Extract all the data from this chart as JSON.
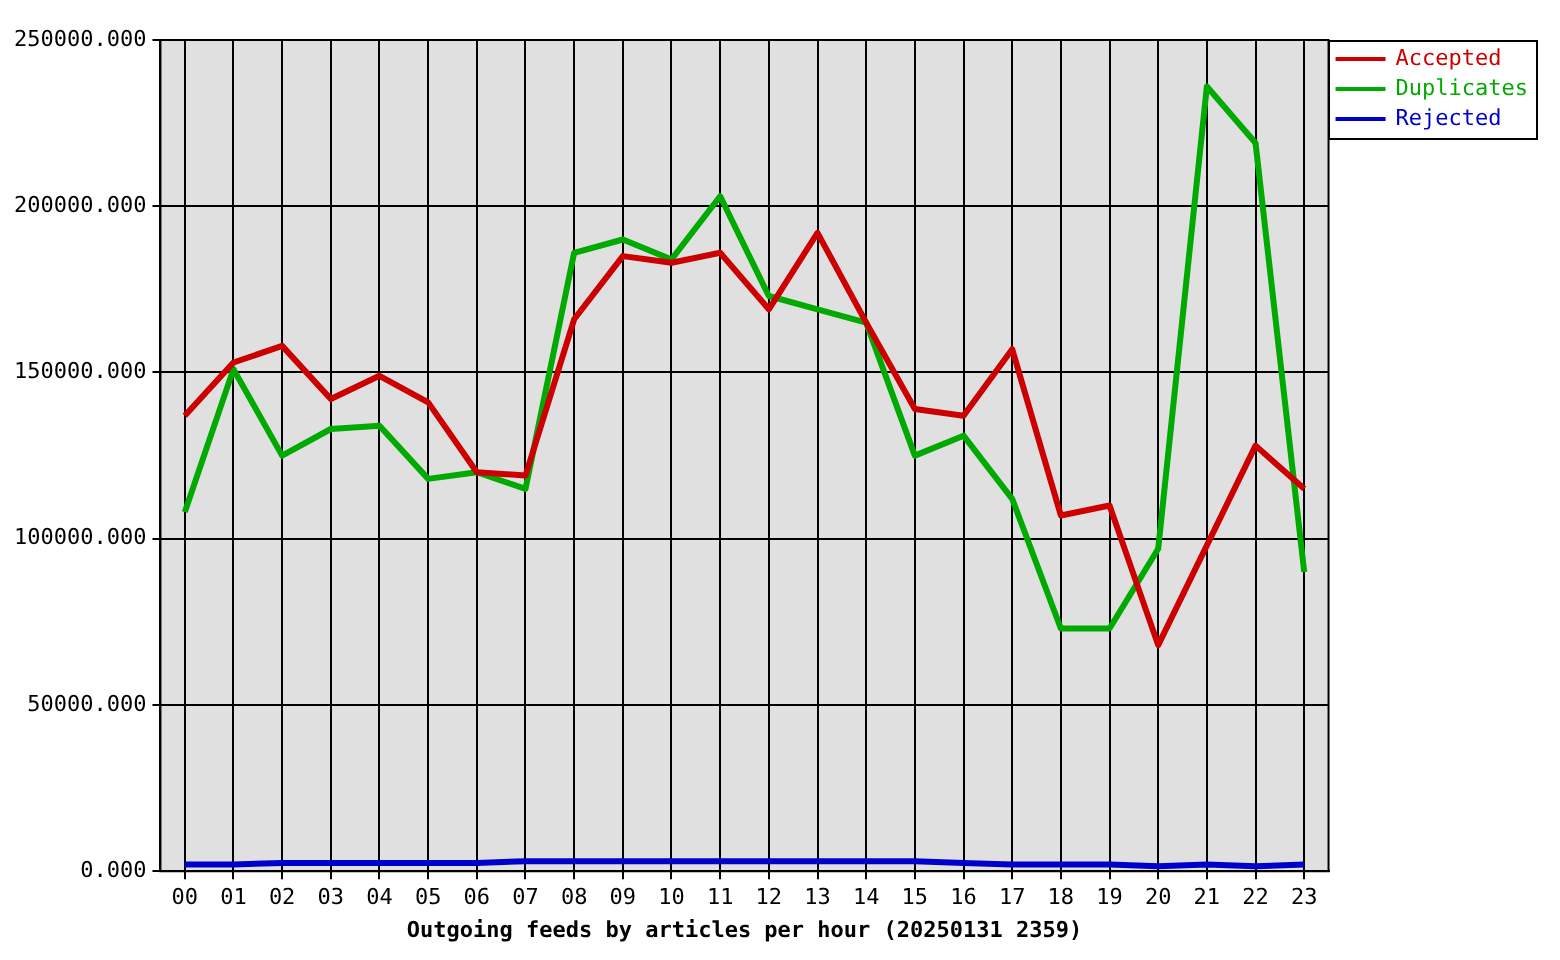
{
  "chart_data": {
    "type": "line",
    "xlabel": "Outgoing feeds by articles per hour (20250131 2359)",
    "categories": [
      "00",
      "01",
      "02",
      "03",
      "04",
      "05",
      "06",
      "07",
      "08",
      "09",
      "10",
      "11",
      "12",
      "13",
      "14",
      "15",
      "16",
      "17",
      "18",
      "19",
      "20",
      "21",
      "22",
      "23"
    ],
    "series": [
      {
        "name": "Accepted",
        "color": "#cc0000",
        "values": [
          137000,
          153000,
          158000,
          142000,
          149000,
          141000,
          120000,
          119000,
          166000,
          185000,
          183000,
          186000,
          169000,
          192000,
          165000,
          139000,
          137000,
          157000,
          107000,
          110000,
          68000,
          98000,
          128000,
          115000
        ]
      },
      {
        "name": "Duplicates",
        "color": "#00aa00",
        "values": [
          108000,
          151000,
          125000,
          133000,
          134000,
          118000,
          120000,
          115000,
          186000,
          190000,
          184000,
          203000,
          173000,
          169000,
          165000,
          125000,
          131000,
          112000,
          73000,
          73000,
          97000,
          236000,
          219000,
          90000
        ]
      },
      {
        "name": "Rejected",
        "color": "#0000cc",
        "values": [
          2000,
          2000,
          2500,
          2500,
          2500,
          2500,
          2500,
          3000,
          3000,
          3000,
          3000,
          3000,
          3000,
          3000,
          3000,
          3000,
          2500,
          2000,
          2000,
          2000,
          1500,
          2000,
          1500,
          2000
        ]
      }
    ],
    "ylim": [
      0,
      250000
    ],
    "yticks": [
      {
        "value": 0,
        "label": "0.000"
      },
      {
        "value": 50000,
        "label": "50000.000"
      },
      {
        "value": 100000,
        "label": "100000.000"
      },
      {
        "value": 150000,
        "label": "150000.000"
      },
      {
        "value": 200000,
        "label": "200000.000"
      },
      {
        "value": 250000,
        "label": "250000.000"
      }
    ],
    "grid": true,
    "legend": "top right",
    "marker": "none",
    "line_style": "solid"
  }
}
